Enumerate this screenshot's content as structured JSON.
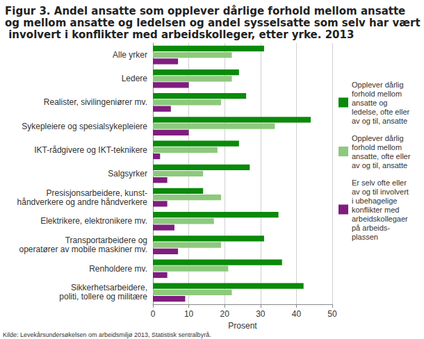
{
  "chart_data": {
    "type": "bar",
    "title": "Figur 3. Andel ansatte som opplever dårlige forhold mellom ansatte og mellom ansatte og ledelsen og andel sysselsatte som selv har vært involvert i konflikter med arbeidskolleger, etter yrke. 2013",
    "orientation": "horizontal",
    "categories": [
      "Alle yrker",
      "Ledere",
      "Realister, sivilingeniører mv.",
      "Sykepleiere og spesialsykepleiere",
      "IKT-rådgivere og IKT-teknikere",
      "Salgsyrker",
      "Presisjonsarbeidere, kunst-\nhåndverkere og andre håndverkere",
      "Elektrikere, elektronikere mv.",
      "Transportarbeidere og\noperatører av mobile maskiner mv.",
      "Renholdere mv.",
      "Sikkerhetsarbeidere,\npoliti, tollere og militære"
    ],
    "series": [
      {
        "name": "Opplever dårlig\nforhold mellom\nansatte og\nledelse, ofte eller\nav og til, ansatte",
        "color": "#0a8a0a",
        "values": [
          31,
          24,
          26,
          44,
          24,
          27,
          14,
          35,
          31,
          36,
          42
        ]
      },
      {
        "name": "Opplever dårlig\nforhold mellom\nansatte, ofte eller\nav og til, ansatte",
        "color": "#8dc97d",
        "values": [
          22,
          22,
          19,
          34,
          18,
          14,
          19,
          17,
          19,
          21,
          22
        ]
      },
      {
        "name": "Er selv ofte eller\nav og til involvert\ni ubehagelige\nkonflikter med\narbeidskollegaer\npå arbeids-\nplassen",
        "color": "#7f1d7f",
        "values": [
          7,
          10,
          5,
          10,
          2,
          4,
          4,
          6,
          7,
          4,
          9
        ]
      }
    ],
    "xlabel": "Prosent",
    "xlim": [
      0,
      50
    ],
    "xticks": [
      0,
      10,
      20,
      30,
      40,
      50
    ],
    "grid": true,
    "legend": "right",
    "annotations": [
      "Kilde: Levekårsundersøkelsen om arbeidsmiljø 2013, Statistisk sentralbyrå."
    ]
  }
}
